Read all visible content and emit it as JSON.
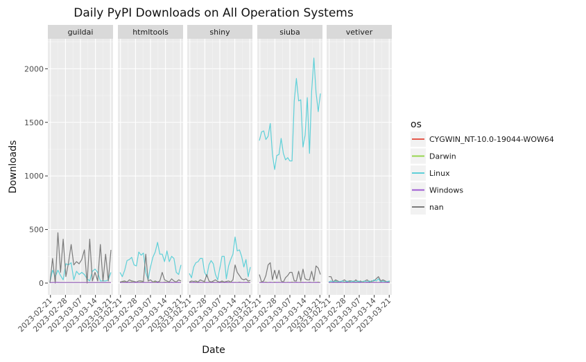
{
  "chart_data": {
    "type": "line",
    "title": "Daily PyPI Downloads on All Operation Systems",
    "xlabel": "Date",
    "ylabel": "Downloads",
    "ylim": [
      -110,
      2280
    ],
    "yticks": [
      0,
      500,
      1000,
      1500,
      2000
    ],
    "xticks": [
      "2023-02-21",
      "2023-02-28",
      "2023-03-07",
      "2023-03-14",
      "2023-03-21"
    ],
    "legend_title": "os",
    "legend": [
      {
        "name": "CYGWIN_NT-10.0-19044-WOW64",
        "color": "#e5584b"
      },
      {
        "name": "Darwin",
        "color": "#97d54f"
      },
      {
        "name": "Linux",
        "color": "#5ed0d8"
      },
      {
        "name": "Windows",
        "color": "#9e5bd1"
      },
      {
        "name": "nan",
        "color": "#7a7a7a"
      }
    ],
    "panels": [
      {
        "name": "guildai",
        "series": [
          {
            "os": "Linux",
            "values": [
              10,
              120,
              60,
              120,
              70,
              30,
              180,
              170,
              190,
              30,
              110,
              80,
              100,
              80,
              40,
              20,
              110,
              130,
              100,
              20,
              20,
              20,
              30,
              100
            ]
          },
          {
            "os": "nan",
            "values": [
              0,
              230,
              0,
              470,
              100,
              410,
              60,
              190,
              360,
              170,
              200,
              180,
              220,
              310,
              0,
              410,
              20,
              100,
              20,
              360,
              20,
              270,
              20,
              310
            ]
          },
          {
            "os": "Darwin",
            "values": [
              5,
              5,
              8,
              5,
              5,
              5,
              5,
              5,
              5,
              5,
              5,
              5,
              5,
              5,
              5,
              5,
              5,
              5,
              5,
              5,
              5,
              5,
              5,
              5
            ]
          },
          {
            "os": "Windows",
            "values": [
              5,
              5,
              6,
              6,
              5,
              5,
              5,
              5,
              5,
              5,
              5,
              5,
              5,
              5,
              5,
              5,
              5,
              5,
              5,
              5,
              5,
              5,
              5,
              5
            ]
          }
        ]
      },
      {
        "name": "htmltools",
        "series": [
          {
            "os": "Linux",
            "values": [
              100,
              60,
              120,
              210,
              220,
              240,
              170,
              160,
              290,
              260,
              280,
              100,
              30,
              150,
              240,
              290,
              380,
              270,
              270,
              200,
              300,
              200,
              250,
              230,
              100,
              80,
              170
            ]
          },
          {
            "os": "nan",
            "values": [
              10,
              15,
              20,
              10,
              30,
              20,
              15,
              10,
              20,
              20,
              15,
              270,
              20,
              30,
              10,
              20,
              10,
              20,
              100,
              30,
              20,
              10,
              40,
              20,
              10,
              30,
              20
            ]
          },
          {
            "os": "Darwin",
            "values": [
              5,
              8,
              10,
              5,
              8,
              10,
              5,
              8,
              5,
              10,
              8,
              5,
              8,
              5,
              8,
              10,
              5,
              8,
              5,
              10,
              8,
              5,
              8,
              5,
              8,
              5,
              8
            ]
          },
          {
            "os": "Windows",
            "values": [
              5,
              5,
              6,
              5,
              6,
              5,
              5,
              6,
              5,
              5,
              6,
              5,
              5,
              6,
              5,
              5,
              6,
              5,
              5,
              6,
              5,
              5,
              6,
              5,
              5,
              6,
              5
            ]
          }
        ]
      },
      {
        "name": "shiny",
        "series": [
          {
            "os": "Linux",
            "values": [
              90,
              50,
              150,
              190,
              200,
              230,
              230,
              100,
              60,
              170,
              210,
              180,
              80,
              30,
              140,
              250,
              250,
              40,
              160,
              220,
              270,
              430,
              300,
              310,
              250,
              150,
              220,
              60,
              150
            ]
          },
          {
            "os": "nan",
            "values": [
              10,
              20,
              15,
              20,
              10,
              30,
              20,
              15,
              80,
              20,
              10,
              20,
              30,
              15,
              10,
              20,
              10,
              15,
              20,
              10,
              30,
              170,
              100,
              70,
              40,
              30,
              40,
              20,
              25
            ]
          },
          {
            "os": "Darwin",
            "values": [
              5,
              8,
              5,
              10,
              5,
              8,
              5,
              10,
              5,
              8,
              5,
              10,
              5,
              8,
              5,
              10,
              5,
              8,
              5,
              10,
              5,
              8,
              5,
              10,
              5,
              8,
              5,
              10,
              5
            ]
          },
          {
            "os": "Windows",
            "values": [
              5,
              5,
              6,
              5,
              5,
              6,
              5,
              5,
              6,
              5,
              5,
              6,
              5,
              5,
              6,
              5,
              5,
              6,
              5,
              5,
              6,
              5,
              5,
              6,
              5,
              5,
              6,
              5,
              5
            ]
          }
        ]
      },
      {
        "name": "siuba",
        "series": [
          {
            "os": "Linux",
            "values": [
              1330,
              1410,
              1420,
              1340,
              1370,
              1490,
              1200,
              1060,
              1190,
              1200,
              1350,
              1210,
              1150,
              1170,
              1140,
              1140,
              1700,
              1910,
              1700,
              1710,
              1270,
              1380,
              1730,
              1210,
              1790,
              2100,
              1780,
              1600,
              1770
            ]
          },
          {
            "os": "nan",
            "values": [
              80,
              10,
              20,
              70,
              170,
              190,
              30,
              120,
              40,
              120,
              20,
              10,
              50,
              70,
              100,
              100,
              20,
              20,
              110,
              20,
              130,
              40,
              30,
              30,
              110,
              20,
              160,
              140,
              80
            ]
          },
          {
            "os": "Darwin",
            "values": [
              5,
              8,
              5,
              10,
              5,
              8,
              5,
              10,
              5,
              8,
              5,
              10,
              5,
              8,
              5,
              10,
              5,
              8,
              5,
              10,
              5,
              8,
              5,
              10,
              5,
              8,
              5,
              10,
              5
            ]
          },
          {
            "os": "Windows",
            "values": [
              5,
              5,
              6,
              5,
              5,
              6,
              5,
              5,
              6,
              5,
              5,
              6,
              5,
              5,
              6,
              5,
              5,
              6,
              5,
              5,
              6,
              5,
              5,
              6,
              5,
              5,
              6,
              5,
              5
            ]
          }
        ]
      },
      {
        "name": "vetiver",
        "series": [
          {
            "os": "nan",
            "values": [
              60,
              60,
              10,
              30,
              20,
              10,
              20,
              30,
              10,
              20,
              20,
              10,
              30,
              10,
              20,
              10,
              20,
              30,
              10,
              20,
              20,
              40,
              60,
              20,
              30,
              20,
              10,
              20
            ]
          },
          {
            "os": "Linux",
            "values": [
              10,
              20,
              10,
              20,
              10,
              15,
              20,
              10,
              20,
              10,
              15,
              20,
              10,
              20,
              10,
              15,
              20,
              10,
              20,
              10,
              30,
              20,
              40,
              10,
              20,
              10,
              15,
              20
            ]
          },
          {
            "os": "Darwin",
            "values": [
              5,
              8,
              5,
              10,
              5,
              8,
              5,
              10,
              5,
              8,
              5,
              10,
              5,
              8,
              5,
              10,
              5,
              8,
              5,
              10,
              5,
              8,
              5,
              10,
              5,
              8,
              5,
              10
            ]
          },
          {
            "os": "Windows",
            "values": [
              5,
              5,
              6,
              5,
              5,
              6,
              5,
              5,
              6,
              5,
              5,
              6,
              5,
              5,
              6,
              5,
              5,
              6,
              5,
              5,
              6,
              5,
              5,
              6,
              5,
              5,
              6,
              5
            ]
          }
        ]
      }
    ]
  }
}
